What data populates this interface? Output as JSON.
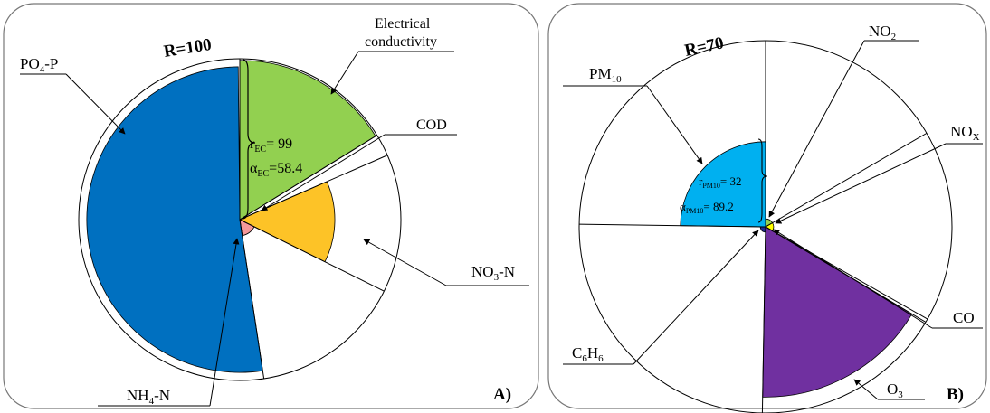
{
  "chart_data": [
    {
      "type": "pie",
      "panel_label": "A)",
      "radius_label": "R=100",
      "max_radius": 100,
      "sectors": [
        {
          "name": "Electrical conductivity",
          "name_line1": "Electrical",
          "name_line2": "conductivity",
          "r": 99,
          "angle": 58.4,
          "color": "#92d050"
        },
        {
          "name": "COD",
          "r": 0,
          "angle": 8,
          "color": "#ffffff"
        },
        {
          "name": "NO₃-N",
          "r": 59,
          "angle": 50,
          "color": "#fdc327"
        },
        {
          "name": "NH₄-N",
          "r": 10,
          "angle": 55,
          "color": "#f4989a"
        },
        {
          "name": "PO₄-P",
          "r": 95,
          "angle": 188,
          "color": "#0070c0"
        }
      ],
      "annotation": {
        "r_text": "r",
        "r_sub": "EC",
        "r_value": "= 99",
        "a_text": "α",
        "a_sub": "EC",
        "a_value": "=58.4"
      }
    },
    {
      "type": "pie",
      "panel_label": "B)",
      "radius_label": "R=70",
      "max_radius": 70,
      "sectors": [
        {
          "name": "NO₂",
          "name_base": "NO",
          "name_sub": "2",
          "r": 3,
          "angle": 59.8,
          "color": "#92d050"
        },
        {
          "name": "NOₓ",
          "name_base": "NO",
          "name_sub": "X",
          "r": 3,
          "angle": 59.9,
          "color": "#ffff00"
        },
        {
          "name": "CO",
          "name_base": "CO",
          "name_sub": "",
          "r": 0,
          "angle": 1.1,
          "color": "#ffffff"
        },
        {
          "name": "O₃",
          "name_base": "O",
          "name_sub": "3",
          "r": 64,
          "angle": 60.2,
          "color": "#7030a0"
        },
        {
          "name": "C₆H₆",
          "name_base": "C",
          "name_sub": "6",
          "name_base2": "H",
          "name_sub2": "6",
          "r": 2,
          "angle": 89.8,
          "color": "#1f2a8c"
        },
        {
          "name": "PM₁₀",
          "name_base": "PM",
          "name_sub": "10",
          "r": 32,
          "angle": 89.2,
          "color": "#00b0f0"
        }
      ],
      "annotation": {
        "r_text": "r",
        "r_sub": "PM10",
        "r_value": "= 32",
        "a_text": "α",
        "a_sub": "PM10",
        "a_value": "= 89.2"
      }
    }
  ]
}
